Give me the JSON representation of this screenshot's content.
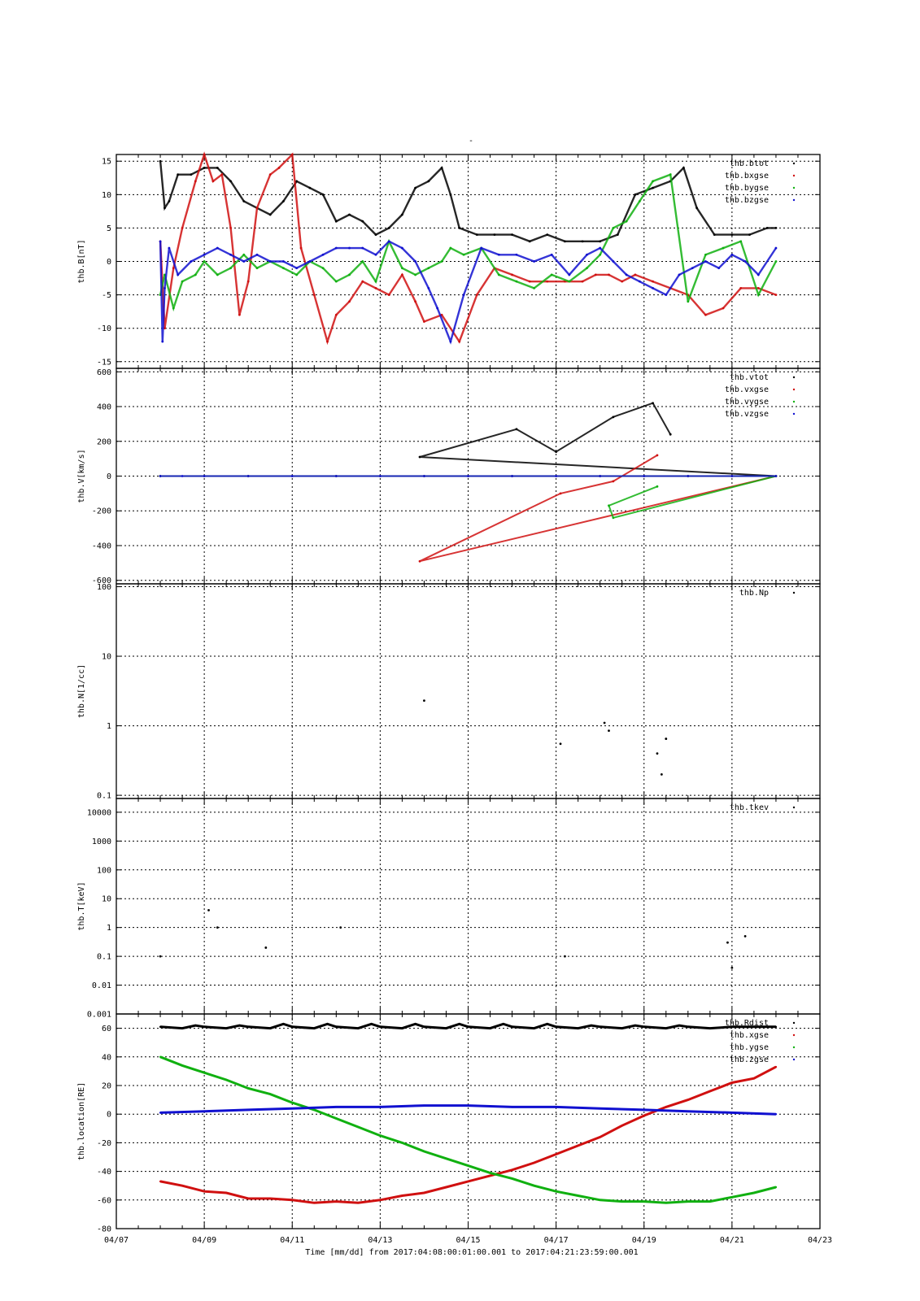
{
  "figure": {
    "title": "-",
    "xlabel": "Time [mm/dd]  from 2017:04:08:00:01:00.001  to  2017:04:21:23:59:00.001",
    "x_ticks": [
      "04/07",
      "04/09",
      "04/11",
      "04/13",
      "04/15",
      "04/17",
      "04/19",
      "04/21",
      "04/23"
    ]
  },
  "chart_data": [
    {
      "id": "B",
      "type": "scatter",
      "ylabel": "thb.B[nT]",
      "xlim": [
        0,
        16
      ],
      "ylim": [
        -16,
        16
      ],
      "yscale": "linear",
      "yticks": [
        15,
        10,
        5,
        0,
        -5,
        -10,
        -15
      ],
      "ytick_labels": [
        "15",
        "10",
        "5",
        "0",
        "-5",
        "-10",
        "-15"
      ],
      "grid": true,
      "legend_position": "top-right",
      "series": [
        {
          "name": "thb.btot",
          "color": "#000000",
          "x": [
            1.0,
            1.1,
            1.2,
            1.4,
            1.7,
            2.0,
            2.3,
            2.6,
            2.9,
            3.2,
            3.5,
            3.8,
            4.1,
            4.4,
            4.7,
            5.0,
            5.3,
            5.6,
            5.9,
            6.2,
            6.5,
            6.8,
            7.1,
            7.4,
            7.6,
            7.8,
            8.2,
            8.6,
            9.0,
            9.4,
            9.8,
            10.2,
            10.6,
            11.0,
            11.4,
            11.8,
            12.2,
            12.6,
            12.9,
            13.2,
            13.6,
            14.0,
            14.4,
            14.8,
            15.0
          ],
          "y": [
            15,
            8,
            9,
            13,
            13,
            14,
            14,
            12,
            9,
            8,
            7,
            9,
            12,
            11,
            10,
            6,
            7,
            6,
            4,
            5,
            7,
            11,
            12,
            14,
            10,
            5,
            4,
            4,
            4,
            3,
            4,
            3,
            3,
            3,
            4,
            10,
            11,
            12,
            14,
            8,
            4,
            4,
            4,
            5,
            5
          ]
        },
        {
          "name": "thb.bxgse",
          "color": "#d01010",
          "x": [
            1.0,
            1.1,
            1.3,
            1.5,
            1.8,
            2.0,
            2.2,
            2.4,
            2.6,
            2.8,
            3.0,
            3.2,
            3.5,
            3.7,
            4.0,
            4.2,
            4.5,
            4.8,
            5.0,
            5.3,
            5.6,
            5.9,
            6.2,
            6.5,
            6.8,
            7.0,
            7.4,
            7.8,
            8.2,
            8.6,
            9.0,
            9.4,
            9.8,
            10.2,
            10.6,
            10.9,
            11.2,
            11.5,
            11.8,
            12.2,
            12.6,
            13.0,
            13.4,
            13.8,
            14.2,
            14.6,
            15.0
          ],
          "y": [
            3,
            -10,
            -1,
            5,
            12,
            16,
            12,
            13,
            5,
            -8,
            -3,
            8,
            13,
            14,
            16,
            2,
            -5,
            -12,
            -8,
            -6,
            -3,
            -4,
            -5,
            -2,
            -6,
            -9,
            -8,
            -12,
            -5,
            -1,
            -2,
            -3,
            -3,
            -3,
            -3,
            -2,
            -2,
            -3,
            -2,
            -3,
            -4,
            -5,
            -8,
            -7,
            -4,
            -4,
            -5
          ]
        },
        {
          "name": "thb.bygse",
          "color": "#10b010",
          "x": [
            1.0,
            1.1,
            1.3,
            1.5,
            1.8,
            2.0,
            2.3,
            2.6,
            2.9,
            3.2,
            3.5,
            3.8,
            4.1,
            4.4,
            4.7,
            5.0,
            5.3,
            5.6,
            5.9,
            6.2,
            6.5,
            6.8,
            7.1,
            7.4,
            7.6,
            7.9,
            8.3,
            8.7,
            9.1,
            9.5,
            9.9,
            10.3,
            10.7,
            11.0,
            11.3,
            11.6,
            11.9,
            12.2,
            12.6,
            13.0,
            13.4,
            13.8,
            14.2,
            14.6,
            15.0
          ],
          "y": [
            -5,
            -2,
            -7,
            -3,
            -2,
            0,
            -2,
            -1,
            1,
            -1,
            0,
            -1,
            -2,
            0,
            -1,
            -3,
            -2,
            0,
            -3,
            3,
            -1,
            -2,
            -1,
            0,
            2,
            1,
            2,
            -2,
            -3,
            -4,
            -2,
            -3,
            -1,
            1,
            5,
            6,
            9,
            12,
            13,
            -6,
            1,
            2,
            3,
            -5,
            0
          ]
        },
        {
          "name": "thb.bzgse",
          "color": "#1010d0",
          "x": [
            1.0,
            1.05,
            1.1,
            1.2,
            1.4,
            1.7,
            2.0,
            2.3,
            2.6,
            2.9,
            3.2,
            3.5,
            3.8,
            4.1,
            4.4,
            4.7,
            5.0,
            5.3,
            5.6,
            5.9,
            6.2,
            6.5,
            6.8,
            7.1,
            7.3,
            7.6,
            7.9,
            8.3,
            8.7,
            9.1,
            9.5,
            9.9,
            10.3,
            10.7,
            11.0,
            11.3,
            11.6,
            11.9,
            12.2,
            12.5,
            12.8,
            13.1,
            13.4,
            13.7,
            14.0,
            14.3,
            14.6,
            15.0
          ],
          "y": [
            3,
            -12,
            -4,
            2,
            -2,
            0,
            1,
            2,
            1,
            0,
            1,
            0,
            0,
            -1,
            0,
            1,
            2,
            2,
            2,
            1,
            3,
            2,
            0,
            -4,
            -7,
            -12,
            -5,
            2,
            1,
            1,
            0,
            1,
            -2,
            1,
            2,
            0,
            -2,
            -3,
            -4,
            -5,
            -2,
            -1,
            0,
            -1,
            1,
            0,
            -2,
            2
          ]
        }
      ]
    },
    {
      "id": "V",
      "type": "scatter",
      "ylabel": "thb.V[km/s]",
      "xlim": [
        0,
        16
      ],
      "ylim": [
        -620,
        620
      ],
      "yscale": "linear",
      "yticks": [
        600,
        400,
        200,
        0,
        -200,
        -400,
        -600
      ],
      "ytick_labels": [
        "600",
        "400",
        "200",
        "0",
        "-200",
        "-400",
        "-600"
      ],
      "grid": true,
      "legend_position": "top-right",
      "series": [
        {
          "name": "thb.vtot",
          "color": "#000000",
          "x": [
            1.0,
            2.0,
            3.0,
            4.0,
            5.0,
            6.0,
            7.0,
            8.0,
            9.0,
            10.0,
            11.0,
            12.0,
            13.0,
            14.0,
            15.0,
            6.9,
            9.1,
            10.0,
            11.3,
            12.2,
            12.6
          ],
          "y": [
            0,
            0,
            0,
            0,
            0,
            0,
            0,
            0,
            0,
            0,
            0,
            0,
            0,
            0,
            0,
            110,
            270,
            140,
            340,
            420,
            240
          ]
        },
        {
          "name": "thb.vxgse",
          "color": "#d01010",
          "x": [
            1.0,
            3.0,
            5.0,
            7.0,
            9.0,
            11.0,
            13.0,
            15.0,
            6.9,
            10.1,
            11.3,
            12.3
          ],
          "y": [
            0,
            0,
            0,
            0,
            0,
            0,
            0,
            0,
            -490,
            -100,
            -30,
            120
          ]
        },
        {
          "name": "thb.vygse",
          "color": "#10b010",
          "x": [
            1.0,
            3.0,
            5.0,
            7.0,
            9.0,
            11.0,
            13.0,
            15.0,
            11.3,
            11.2,
            12.3
          ],
          "y": [
            0,
            0,
            0,
            0,
            0,
            0,
            0,
            0,
            -240,
            -170,
            -60
          ]
        },
        {
          "name": "thb.vzgse",
          "color": "#1010d0",
          "x": [
            1.0,
            1.5,
            2.0,
            3.0,
            4.0,
            5.0,
            6.0,
            7.0,
            8.0,
            9.0,
            10.0,
            11.0,
            12.0,
            13.0,
            14.0,
            15.0
          ],
          "y": [
            0,
            0,
            0,
            0,
            0,
            0,
            0,
            0,
            0,
            0,
            0,
            0,
            0,
            0,
            0,
            0
          ]
        }
      ]
    },
    {
      "id": "N",
      "type": "scatter",
      "ylabel": "thb.N[1/cc]",
      "xlim": [
        0,
        16
      ],
      "ylim": [
        0.09,
        110
      ],
      "yscale": "log",
      "yticks": [
        100,
        10,
        1,
        0.1
      ],
      "ytick_labels": [
        "100",
        "10",
        "1",
        "0.1"
      ],
      "grid": true,
      "legend_position": "top-right",
      "series": [
        {
          "name": "thb.Np",
          "color": "#000000",
          "x": [
            7.0,
            10.1,
            11.1,
            11.2,
            12.3,
            12.4,
            12.5
          ],
          "y": [
            2.3,
            0.55,
            1.1,
            0.85,
            0.4,
            0.2,
            0.65
          ]
        }
      ]
    },
    {
      "id": "T",
      "type": "scatter",
      "ylabel": "thb.T[keV]",
      "xlim": [
        0,
        16
      ],
      "ylim": [
        0.001,
        30000
      ],
      "yscale": "log",
      "yticks": [
        10000,
        1000,
        100,
        10,
        1,
        0.1,
        0.01,
        0.001
      ],
      "ytick_labels": [
        "10000",
        "1000",
        "100",
        "10",
        "1",
        "0.1",
        "0.01",
        "0.001"
      ],
      "grid": true,
      "legend_position": "top-right",
      "series": [
        {
          "name": "thb.tkev",
          "color": "#000000",
          "x": [
            1.0,
            2.1,
            2.3,
            3.4,
            5.1,
            10.2,
            13.9,
            14.0,
            14.3
          ],
          "y": [
            0.1,
            4,
            1,
            0.2,
            1,
            0.1,
            0.3,
            0.04,
            0.5
          ]
        }
      ]
    },
    {
      "id": "location",
      "type": "line",
      "ylabel": "thb.location[RE]",
      "xlim": [
        0,
        16
      ],
      "ylim": [
        -80,
        70
      ],
      "yscale": "linear",
      "yticks": [
        60,
        40,
        20,
        0,
        -20,
        -40,
        -60,
        -80
      ],
      "ytick_labels": [
        "60",
        "40",
        "20",
        "0",
        "-20",
        "-40",
        "-60",
        "-80"
      ],
      "grid": true,
      "legend_position": "top-right",
      "series": [
        {
          "name": "thb.Rdist",
          "color": "#000000",
          "x": [
            1.0,
            1.5,
            1.8,
            2.0,
            2.5,
            2.8,
            3.0,
            3.5,
            3.8,
            4.0,
            4.5,
            4.8,
            5.0,
            5.5,
            5.8,
            6.0,
            6.5,
            6.8,
            7.0,
            7.5,
            7.8,
            8.0,
            8.5,
            8.8,
            9.0,
            9.5,
            9.8,
            10.0,
            10.5,
            10.8,
            11.0,
            11.5,
            11.8,
            12.0,
            12.5,
            12.8,
            13.0,
            13.5,
            14.0,
            15.0
          ],
          "y": [
            61,
            60,
            62,
            61,
            60,
            62,
            61,
            60,
            63,
            61,
            60,
            63,
            61,
            60,
            63,
            61,
            60,
            63,
            61,
            60,
            63,
            61,
            60,
            63,
            61,
            60,
            63,
            61,
            60,
            62,
            61,
            60,
            62,
            61,
            60,
            62,
            61,
            60,
            61,
            61
          ]
        },
        {
          "name": "thb.xgse",
          "color": "#d01010",
          "x": [
            1.0,
            1.5,
            2.0,
            2.5,
            3.0,
            3.5,
            4.0,
            4.5,
            5.0,
            5.5,
            6.0,
            6.5,
            7.0,
            7.5,
            8.0,
            8.5,
            9.0,
            9.5,
            10.0,
            10.5,
            11.0,
            11.5,
            12.0,
            12.5,
            13.0,
            13.5,
            14.0,
            14.5,
            15.0
          ],
          "y": [
            -47,
            -50,
            -54,
            -55,
            -59,
            -59,
            -60,
            -62,
            -61,
            -62,
            -60,
            -57,
            -55,
            -51,
            -47,
            -43,
            -39,
            -34,
            -28,
            -22,
            -16,
            -8,
            -1,
            5,
            10,
            16,
            22,
            25,
            33
          ]
        },
        {
          "name": "thb.ygse",
          "color": "#10b010",
          "x": [
            1.0,
            1.5,
            2.0,
            2.5,
            3.0,
            3.5,
            4.0,
            4.5,
            5.0,
            5.5,
            6.0,
            6.5,
            7.0,
            7.5,
            8.0,
            8.5,
            9.0,
            9.5,
            10.0,
            10.5,
            11.0,
            11.5,
            12.0,
            12.5,
            13.0,
            13.5,
            14.0,
            14.5,
            15.0
          ],
          "y": [
            40,
            34,
            29,
            24,
            18,
            14,
            8,
            3,
            -3,
            -9,
            -15,
            -20,
            -26,
            -31,
            -36,
            -41,
            -45,
            -50,
            -54,
            -57,
            -60,
            -61,
            -61,
            -62,
            -61,
            -61,
            -58,
            -55,
            -51
          ]
        },
        {
          "name": "thb.zgse",
          "color": "#1010d0",
          "x": [
            1.0,
            2.0,
            3.0,
            4.0,
            5.0,
            6.0,
            7.0,
            8.0,
            9.0,
            10.0,
            11.0,
            12.0,
            13.0,
            14.0,
            15.0
          ],
          "y": [
            1,
            2,
            3,
            4,
            5,
            5,
            6,
            6,
            5,
            5,
            4,
            3,
            2,
            1,
            0
          ]
        }
      ]
    }
  ]
}
